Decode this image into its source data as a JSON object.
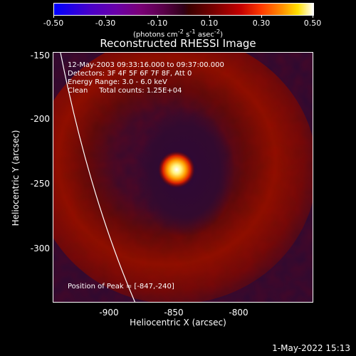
{
  "colorbar": {
    "ticks": [
      "-0.50",
      "-0.30",
      "-0.10",
      "0.10",
      "0.30",
      "0.50"
    ],
    "units_text": "(photons cm",
    "units_sup1": "-2",
    "units_mid": " s",
    "units_sup2": "-1",
    "units_end": " asec",
    "units_sup3": "-2",
    "units_close": ")"
  },
  "title": "Reconstructed RHESSI Image",
  "info": {
    "line1": "12-May-2003 09:33:16.000 to 09:37:00.000",
    "line2": "Detectors: 3F 4F 5F 6F 7F 8F, Att 0",
    "line3": "Energy Range: 3.0 - 6.0 keV",
    "line4": "Clean     Total counts: 1.25E+04"
  },
  "peak_label": "Position of Peak = [-847,-240]",
  "axes": {
    "xlabel": "Heliocentric X (arcsec)",
    "ylabel": "Heliocentric Y (arcsec)",
    "xticks": [
      "-900",
      "-850",
      "-800"
    ],
    "yticks": [
      "-150",
      "-200",
      "-250",
      "-300"
    ]
  },
  "timestamp": "1-May-2022 15:13",
  "colors": {
    "background": "#000000",
    "foreground": "#ffffff"
  }
}
